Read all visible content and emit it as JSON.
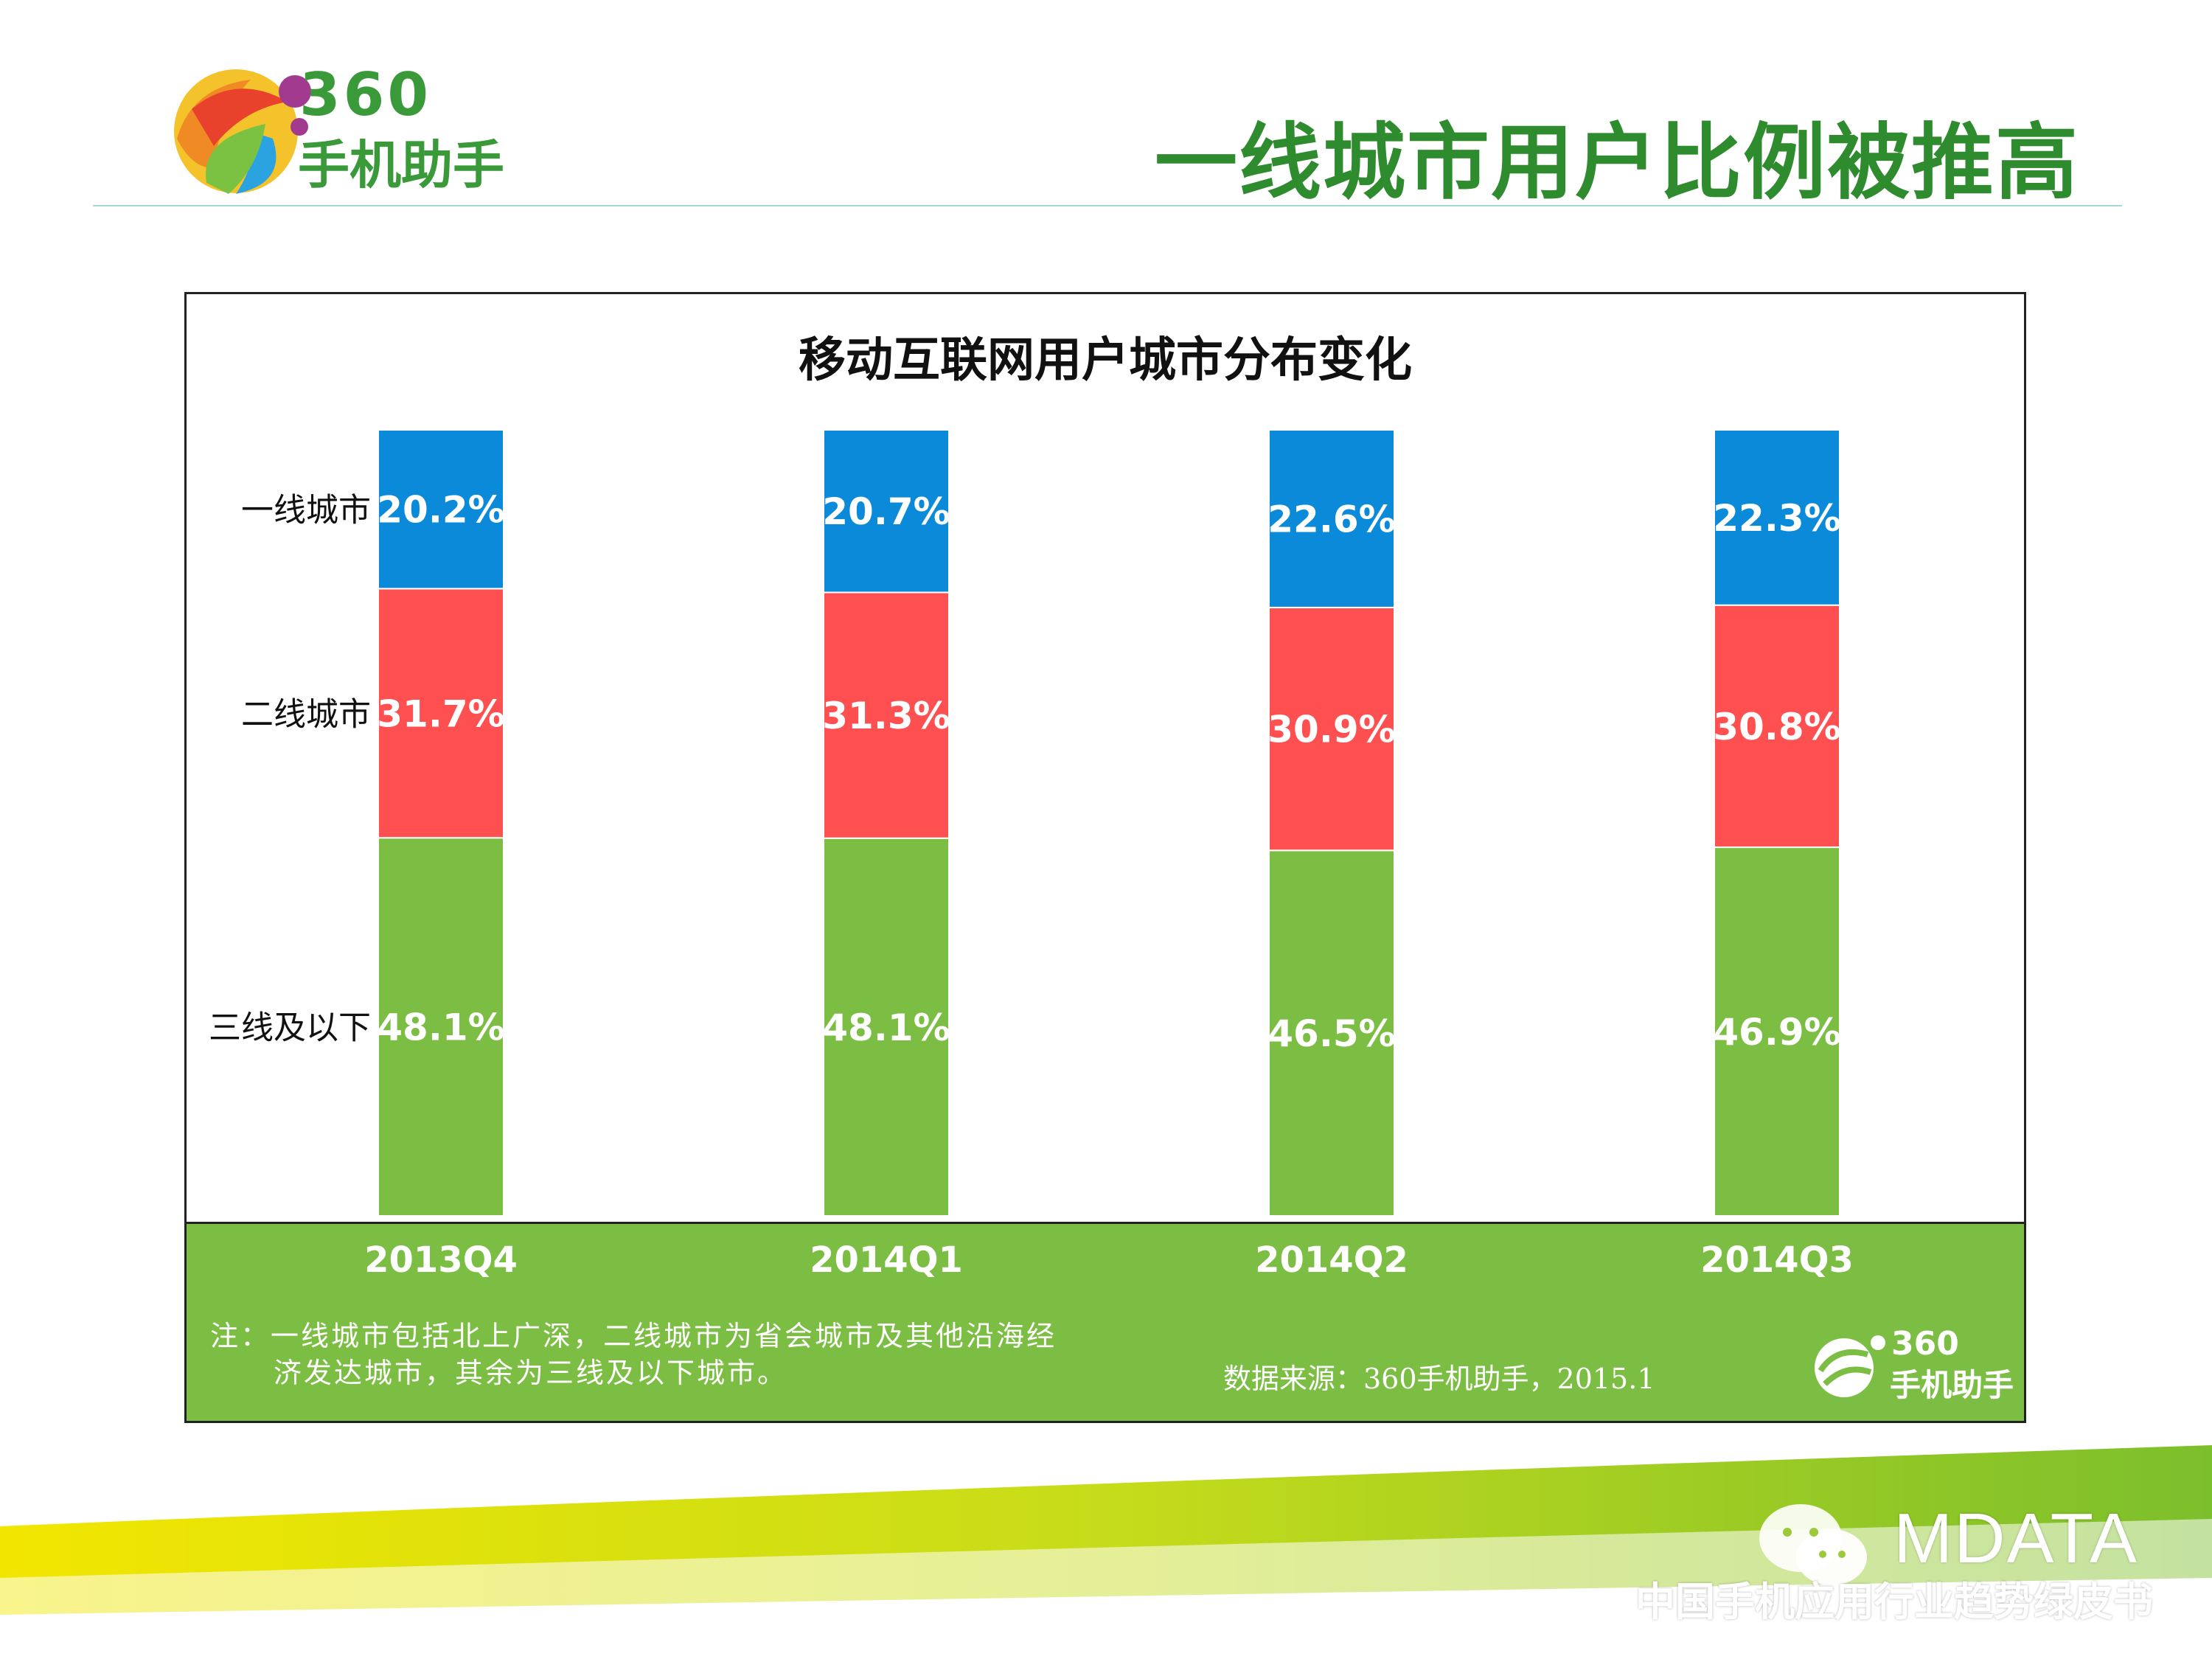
{
  "header": {
    "logo_number": "360",
    "logo_text": "手机助手",
    "title": "一线城市用户比例被推高"
  },
  "chart_data": {
    "type": "bar",
    "stacked": true,
    "percent": true,
    "title": "移动互联网用户城市分布变化",
    "categories": [
      "2013Q4",
      "2014Q1",
      "2014Q2",
      "2014Q3"
    ],
    "series": [
      {
        "name": "三线及以下",
        "values": [
          48.1,
          48.1,
          46.5,
          46.9
        ],
        "color": "#7cbd43",
        "labels": [
          "48.1%",
          "48.1%",
          "46.5%",
          "46.9%"
        ]
      },
      {
        "name": "二线城市",
        "values": [
          31.7,
          31.3,
          30.9,
          30.8
        ],
        "color": "#fe5050",
        "labels": [
          "31.7%",
          "31.3%",
          "30.9%",
          "30.8%"
        ]
      },
      {
        "name": "一线城市",
        "values": [
          20.2,
          20.7,
          22.6,
          22.3
        ],
        "color": "#0b8ad9",
        "labels": [
          "20.2%",
          "20.7%",
          "22.6%",
          "22.3%"
        ]
      }
    ],
    "xlabel": "",
    "ylabel": "",
    "ylim": [
      0,
      100
    ],
    "grid": false,
    "legend": "left, inline with first bar"
  },
  "footnote": {
    "line1": "注：一线城市包括北上广深，二线城市为省会城市及其他沿海经",
    "line2": "济发达城市，其余为三线及以下城市。"
  },
  "source": "数据来源：360手机助手，2015.1",
  "panel_logo": {
    "number": "360",
    "text": "手机助手"
  },
  "footer": {
    "brand": "MDATA",
    "subtitle": "中国手机应用行业趋势绿皮书"
  },
  "colors": {
    "title_green": "#2e8b2e",
    "panel_green": "#7cbd43",
    "tier1_blue": "#0b8ad9",
    "tier2_red": "#fe5050",
    "tier3_green": "#7cbd43"
  }
}
